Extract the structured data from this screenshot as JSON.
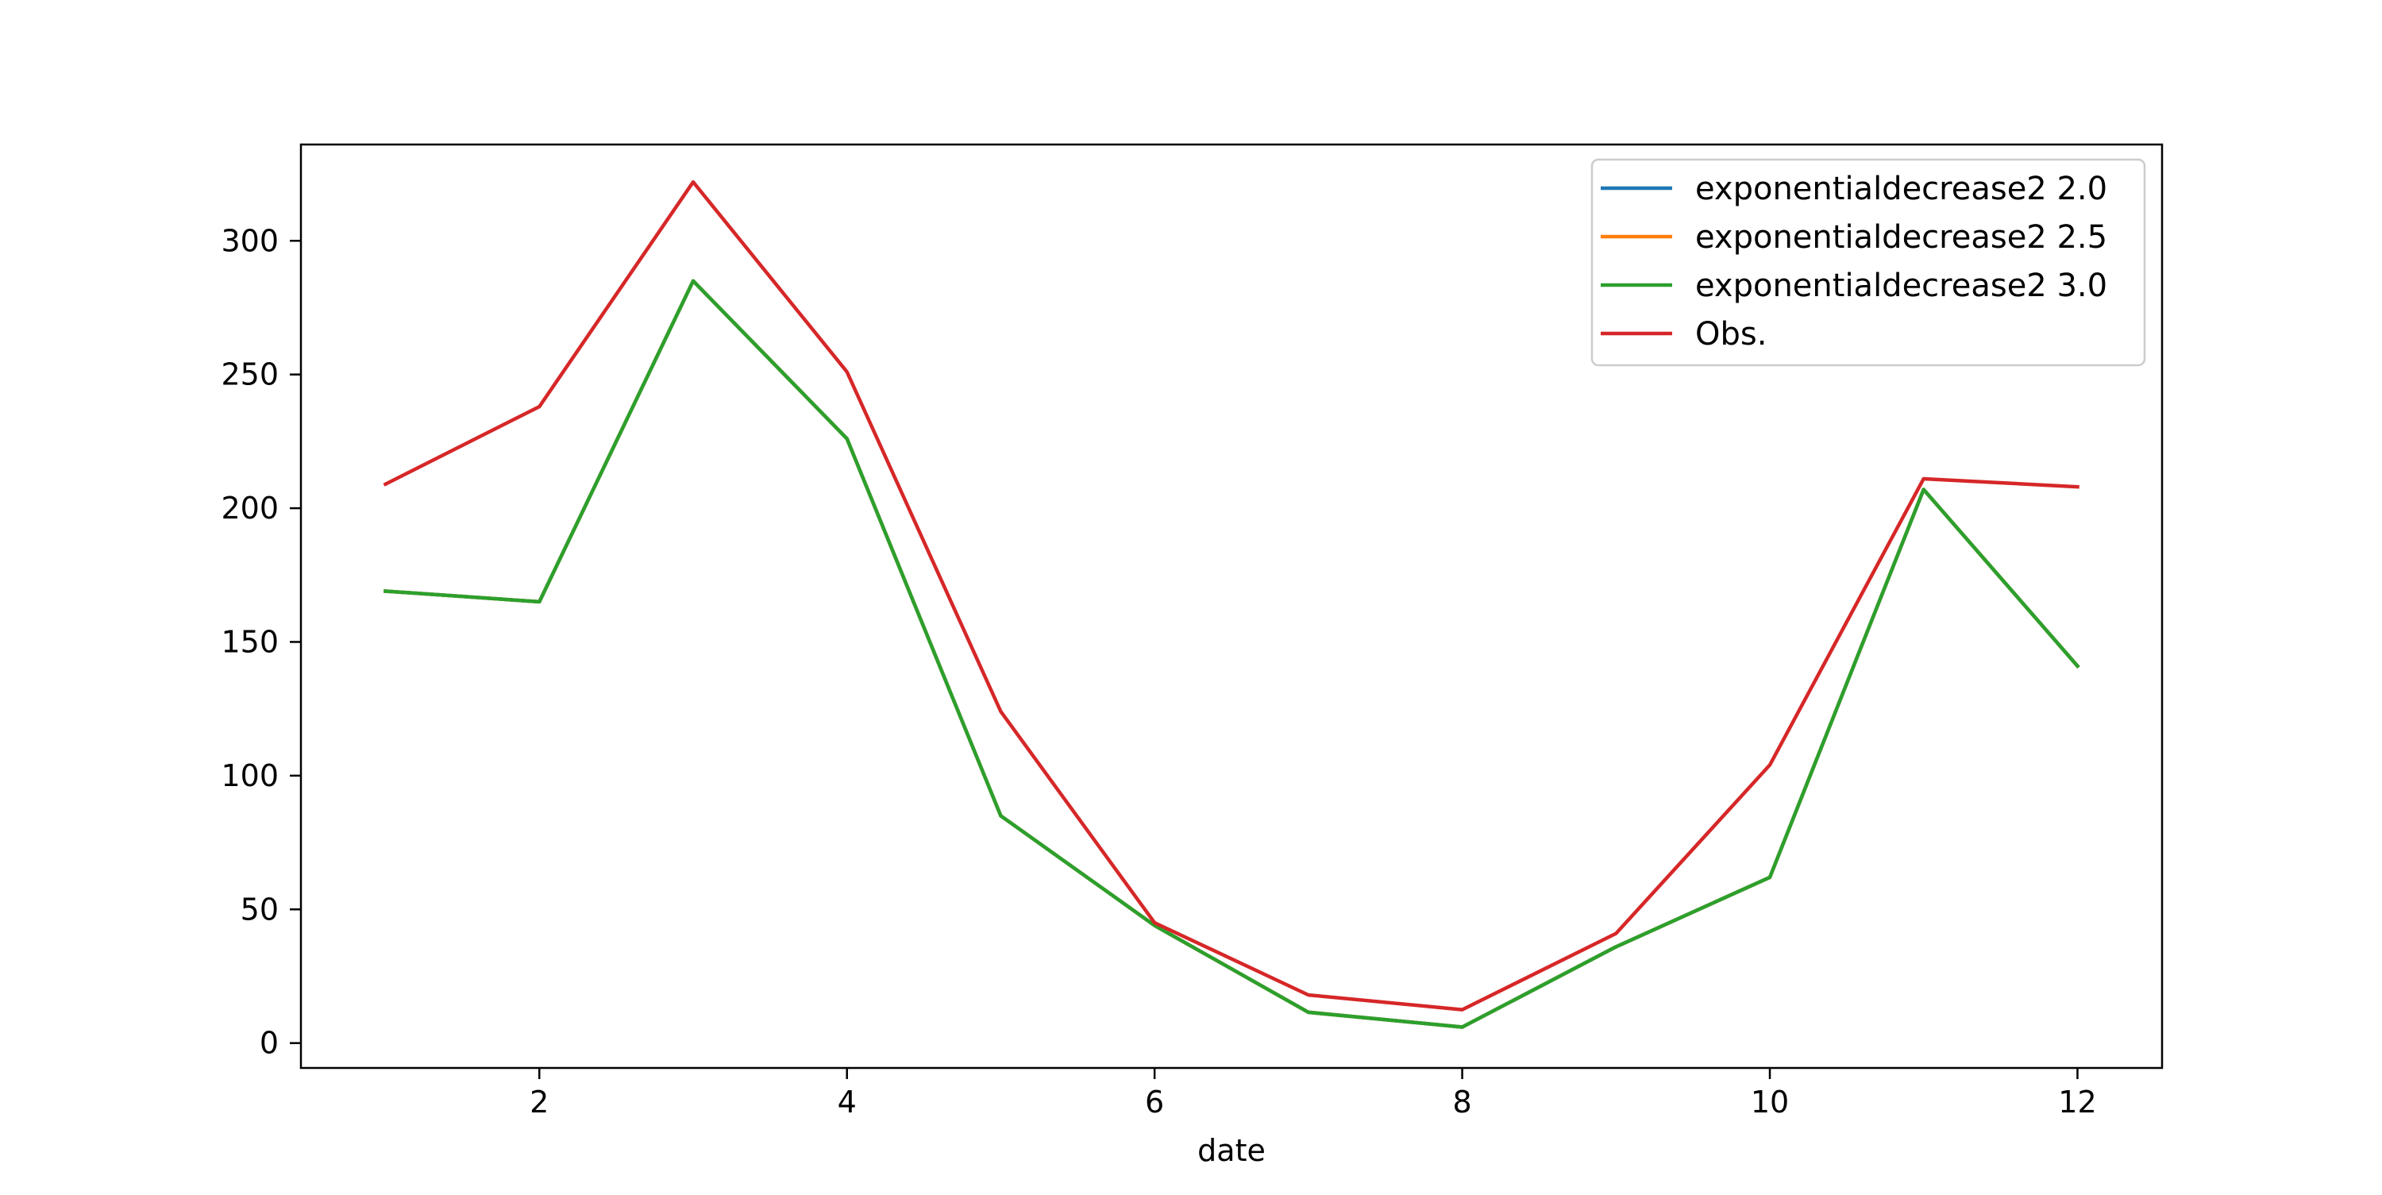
{
  "chart_data": {
    "type": "line",
    "title": "",
    "xlabel": "date",
    "ylabel": "",
    "xlim": [
      0.45,
      12.55
    ],
    "ylim": [
      -9.3,
      336.0
    ],
    "xticks": [
      2,
      4,
      6,
      8,
      10,
      12
    ],
    "yticks": [
      0,
      50,
      100,
      150,
      200,
      250,
      300
    ],
    "x": [
      1,
      2,
      3,
      4,
      5,
      6,
      7,
      8,
      9,
      10,
      11,
      12
    ],
    "series": [
      {
        "name": "exponentialdecrease2 2.0",
        "color": "#1f77b4",
        "values": [
          169,
          165,
          285,
          226,
          85,
          44,
          11.5,
          6,
          36,
          62,
          207,
          141
        ]
      },
      {
        "name": "exponentialdecrease2 2.5",
        "color": "#ff7f0e",
        "values": [
          169,
          165,
          285,
          226,
          85,
          44,
          11.5,
          6,
          36,
          62,
          207,
          141
        ]
      },
      {
        "name": "exponentialdecrease2 3.0",
        "color": "#2ca02c",
        "values": [
          169,
          165,
          285,
          226,
          85,
          44,
          11.5,
          6,
          36,
          62,
          207,
          141
        ]
      },
      {
        "name": "Obs.",
        "color": "#d62728",
        "values": [
          209,
          238,
          322,
          251,
          124,
          45,
          18,
          12.5,
          41,
          104,
          211,
          208
        ]
      }
    ],
    "grid": false,
    "legend_position": "top-right"
  }
}
